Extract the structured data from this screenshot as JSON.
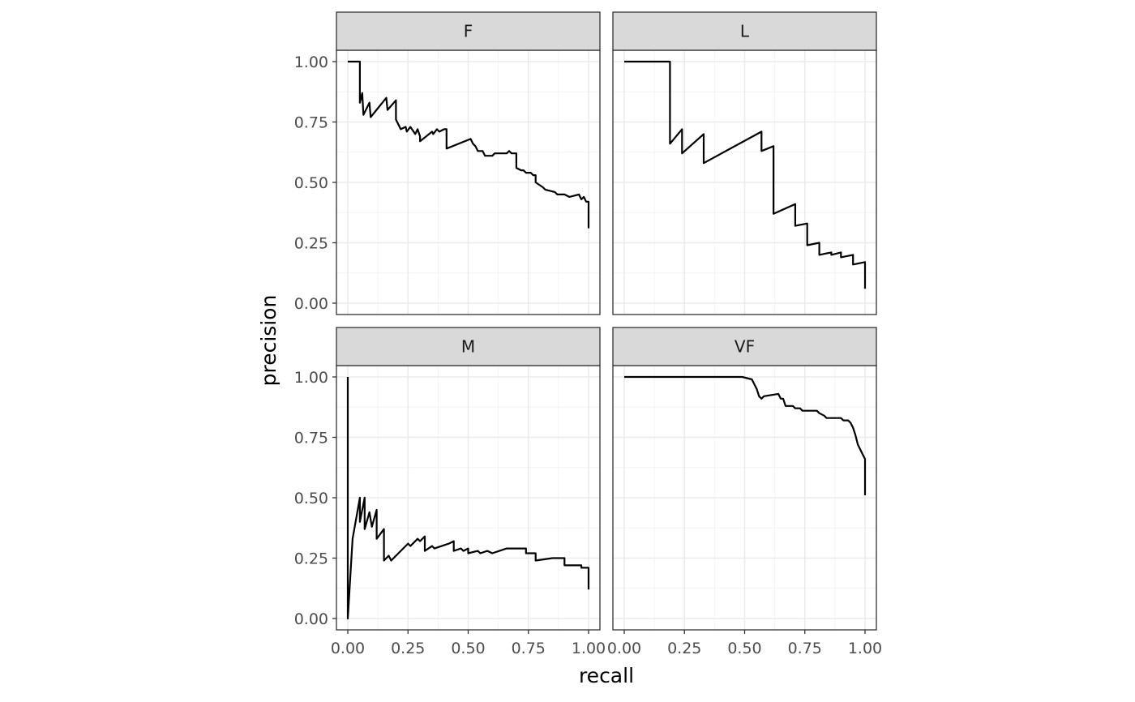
{
  "chart_data": {
    "type": "line",
    "xlabel": "recall",
    "ylabel": "precision",
    "xlim": [
      0,
      1
    ],
    "ylim": [
      0,
      1
    ],
    "x_ticks": [
      "0.00",
      "0.25",
      "0.50",
      "0.75",
      "1.00"
    ],
    "y_ticks": [
      "0.00",
      "0.25",
      "0.50",
      "0.75",
      "1.00"
    ],
    "grid": true,
    "panels": [
      {
        "name": "F",
        "points": [
          [
            0,
            1.0
          ],
          [
            0.05,
            1.0
          ],
          [
            0.05,
            0.83
          ],
          [
            0.06,
            0.87
          ],
          [
            0.065,
            0.78
          ],
          [
            0.09,
            0.83
          ],
          [
            0.095,
            0.77
          ],
          [
            0.16,
            0.85
          ],
          [
            0.165,
            0.8
          ],
          [
            0.2,
            0.84
          ],
          [
            0.2,
            0.76
          ],
          [
            0.21,
            0.74
          ],
          [
            0.22,
            0.72
          ],
          [
            0.24,
            0.73
          ],
          [
            0.245,
            0.71
          ],
          [
            0.26,
            0.73
          ],
          [
            0.28,
            0.7
          ],
          [
            0.29,
            0.72
          ],
          [
            0.3,
            0.69
          ],
          [
            0.3,
            0.67
          ],
          [
            0.35,
            0.71
          ],
          [
            0.355,
            0.7
          ],
          [
            0.37,
            0.72
          ],
          [
            0.38,
            0.71
          ],
          [
            0.4,
            0.72
          ],
          [
            0.41,
            0.72
          ],
          [
            0.41,
            0.64
          ],
          [
            0.51,
            0.68
          ],
          [
            0.52,
            0.66
          ],
          [
            0.53,
            0.65
          ],
          [
            0.54,
            0.63
          ],
          [
            0.56,
            0.63
          ],
          [
            0.57,
            0.61
          ],
          [
            0.6,
            0.61
          ],
          [
            0.61,
            0.62
          ],
          [
            0.66,
            0.62
          ],
          [
            0.67,
            0.63
          ],
          [
            0.68,
            0.62
          ],
          [
            0.7,
            0.62
          ],
          [
            0.7,
            0.56
          ],
          [
            0.72,
            0.55
          ],
          [
            0.73,
            0.55
          ],
          [
            0.74,
            0.54
          ],
          [
            0.76,
            0.54
          ],
          [
            0.77,
            0.53
          ],
          [
            0.78,
            0.53
          ],
          [
            0.78,
            0.5
          ],
          [
            0.81,
            0.48
          ],
          [
            0.82,
            0.47
          ],
          [
            0.86,
            0.46
          ],
          [
            0.87,
            0.45
          ],
          [
            0.9,
            0.45
          ],
          [
            0.92,
            0.44
          ],
          [
            0.96,
            0.45
          ],
          [
            0.97,
            0.43
          ],
          [
            0.98,
            0.44
          ],
          [
            0.99,
            0.42
          ],
          [
            1.0,
            0.42
          ],
          [
            1.0,
            0.31
          ]
        ]
      },
      {
        "name": "L",
        "points": [
          [
            0,
            1.0
          ],
          [
            0.19,
            1.0
          ],
          [
            0.19,
            0.66
          ],
          [
            0.24,
            0.72
          ],
          [
            0.24,
            0.62
          ],
          [
            0.33,
            0.7
          ],
          [
            0.33,
            0.58
          ],
          [
            0.57,
            0.71
          ],
          [
            0.57,
            0.63
          ],
          [
            0.62,
            0.65
          ],
          [
            0.62,
            0.37
          ],
          [
            0.71,
            0.41
          ],
          [
            0.71,
            0.32
          ],
          [
            0.76,
            0.33
          ],
          [
            0.76,
            0.24
          ],
          [
            0.81,
            0.25
          ],
          [
            0.81,
            0.2
          ],
          [
            0.86,
            0.21
          ],
          [
            0.86,
            0.2
          ],
          [
            0.9,
            0.21
          ],
          [
            0.9,
            0.19
          ],
          [
            0.95,
            0.2
          ],
          [
            0.95,
            0.16
          ],
          [
            1.0,
            0.17
          ],
          [
            1.0,
            0.06
          ]
        ]
      },
      {
        "name": "M",
        "points": [
          [
            0,
            1.0
          ],
          [
            0,
            0.0
          ],
          [
            0.02,
            0.33
          ],
          [
            0.05,
            0.5
          ],
          [
            0.05,
            0.4
          ],
          [
            0.07,
            0.5
          ],
          [
            0.07,
            0.37
          ],
          [
            0.09,
            0.44
          ],
          [
            0.1,
            0.38
          ],
          [
            0.12,
            0.45
          ],
          [
            0.12,
            0.33
          ],
          [
            0.15,
            0.37
          ],
          [
            0.15,
            0.24
          ],
          [
            0.17,
            0.26
          ],
          [
            0.18,
            0.24
          ],
          [
            0.25,
            0.31
          ],
          [
            0.26,
            0.3
          ],
          [
            0.29,
            0.33
          ],
          [
            0.3,
            0.32
          ],
          [
            0.32,
            0.34
          ],
          [
            0.32,
            0.28
          ],
          [
            0.35,
            0.3
          ],
          [
            0.36,
            0.29
          ],
          [
            0.42,
            0.31
          ],
          [
            0.44,
            0.32
          ],
          [
            0.44,
            0.28
          ],
          [
            0.47,
            0.29
          ],
          [
            0.48,
            0.28
          ],
          [
            0.5,
            0.29
          ],
          [
            0.5,
            0.27
          ],
          [
            0.54,
            0.28
          ],
          [
            0.55,
            0.27
          ],
          [
            0.58,
            0.28
          ],
          [
            0.6,
            0.27
          ],
          [
            0.66,
            0.29
          ],
          [
            0.74,
            0.29
          ],
          [
            0.74,
            0.27
          ],
          [
            0.78,
            0.27
          ],
          [
            0.78,
            0.24
          ],
          [
            0.85,
            0.25
          ],
          [
            0.9,
            0.25
          ],
          [
            0.9,
            0.22
          ],
          [
            0.97,
            0.22
          ],
          [
            0.97,
            0.21
          ],
          [
            1.0,
            0.21
          ],
          [
            1.0,
            0.12
          ]
        ]
      },
      {
        "name": "VF",
        "points": [
          [
            0,
            1.0
          ],
          [
            0.49,
            1.0
          ],
          [
            0.53,
            0.99
          ],
          [
            0.54,
            0.97
          ],
          [
            0.55,
            0.95
          ],
          [
            0.56,
            0.92
          ],
          [
            0.57,
            0.91
          ],
          [
            0.58,
            0.92
          ],
          [
            0.64,
            0.93
          ],
          [
            0.65,
            0.91
          ],
          [
            0.66,
            0.91
          ],
          [
            0.67,
            0.88
          ],
          [
            0.7,
            0.88
          ],
          [
            0.71,
            0.87
          ],
          [
            0.73,
            0.87
          ],
          [
            0.74,
            0.86
          ],
          [
            0.8,
            0.86
          ],
          [
            0.81,
            0.85
          ],
          [
            0.83,
            0.84
          ],
          [
            0.84,
            0.83
          ],
          [
            0.88,
            0.83
          ],
          [
            0.9,
            0.83
          ],
          [
            0.91,
            0.82
          ],
          [
            0.93,
            0.82
          ],
          [
            0.94,
            0.81
          ],
          [
            0.95,
            0.79
          ],
          [
            0.96,
            0.76
          ],
          [
            0.97,
            0.72
          ],
          [
            0.98,
            0.7
          ],
          [
            0.99,
            0.68
          ],
          [
            1.0,
            0.66
          ],
          [
            1.0,
            0.51
          ]
        ]
      }
    ]
  }
}
